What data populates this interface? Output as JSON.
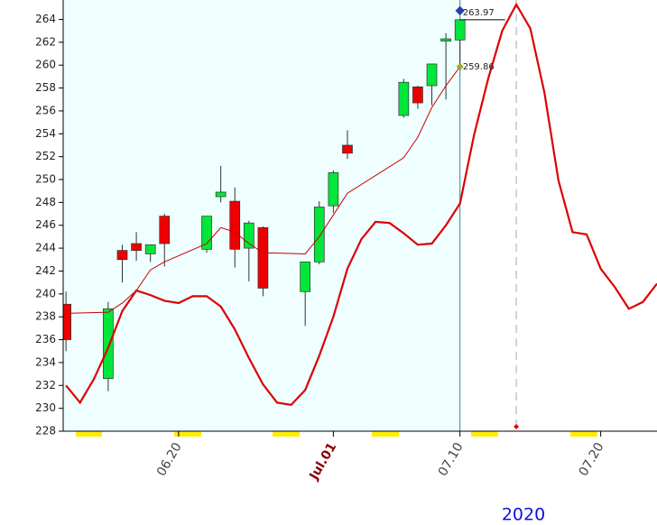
{
  "chart_data": {
    "type": "candlestick",
    "x": [
      12,
      15,
      16,
      17,
      18,
      19,
      22,
      23,
      24,
      25,
      26,
      29,
      30,
      31,
      32,
      36,
      37,
      38,
      39,
      40
    ],
    "open": [
      239.1,
      232.6,
      243.8,
      244.4,
      243.5,
      246.8,
      243.9,
      248.5,
      248.1,
      244.0,
      245.8,
      240.2,
      242.8,
      247.7,
      253.0,
      255.6,
      258.1,
      258.2,
      262.1,
      262.2
    ],
    "high": [
      240.2,
      239.3,
      244.3,
      245.4,
      244.3,
      247.0,
      246.8,
      251.2,
      249.3,
      246.4,
      245.9,
      242.8,
      248.1,
      250.8,
      254.3,
      258.8,
      258.2,
      260.1,
      262.8,
      263.97
    ],
    "low": [
      235.0,
      231.5,
      241.0,
      242.9,
      242.8,
      242.4,
      243.6,
      248.0,
      242.3,
      241.1,
      239.8,
      237.2,
      242.6,
      247.1,
      251.8,
      255.4,
      256.2,
      256.5,
      257.0,
      259.9
    ],
    "close": [
      236.0,
      238.7,
      243.0,
      243.8,
      244.3,
      244.4,
      246.8,
      248.9,
      243.9,
      246.2,
      240.5,
      242.8,
      247.6,
      250.6,
      252.3,
      258.5,
      256.7,
      260.1,
      262.3,
      263.97
    ],
    "up_color": "#00e639",
    "down_color": "#ee0000",
    "overlays": [
      {
        "x": [
          12,
          15,
          16,
          17,
          18,
          19,
          22,
          23,
          24,
          25,
          26,
          29,
          30,
          31,
          32,
          36,
          37,
          38,
          39,
          40
        ],
        "values": [
          238.3,
          238.4,
          239.2,
          240.3,
          242.1,
          242.8,
          244.4,
          245.8,
          245.4,
          244.4,
          243.6,
          243.5,
          245.0,
          246.9,
          248.8,
          251.9,
          253.7,
          256.3,
          258.2,
          259.86
        ],
        "color": "#cc0000",
        "width": 1
      },
      {
        "x": [
          12,
          13,
          14,
          15,
          16,
          17,
          18,
          19,
          20,
          21,
          22,
          23,
          24,
          25,
          26,
          27,
          28,
          29,
          30,
          31,
          32,
          33,
          34,
          35,
          36,
          37,
          38,
          39,
          40,
          41,
          42,
          43,
          44,
          45,
          46,
          47,
          48,
          49,
          50,
          51,
          52,
          53,
          54
        ],
        "values": [
          232.0,
          230.5,
          232.6,
          235.3,
          238.5,
          240.3,
          239.9,
          239.4,
          239.2,
          239.8,
          239.8,
          238.9,
          236.9,
          234.4,
          232.1,
          230.5,
          230.3,
          231.6,
          234.6,
          238.0,
          242.2,
          244.8,
          246.3,
          246.2,
          245.3,
          244.3,
          244.4,
          246.0,
          247.9,
          253.9,
          258.8,
          263.0,
          265.3,
          263.2,
          257.6,
          249.9,
          245.4,
          245.2,
          242.2,
          240.6,
          238.7,
          239.3,
          240.9
        ],
        "color": "#dd0000",
        "width": 2.2
      }
    ],
    "markers": [
      {
        "x": 40,
        "value": 263.97,
        "label": "263.97",
        "color": "#1f3fbf"
      },
      {
        "x": 40,
        "value": 259.86,
        "label": "259.86",
        "color": "#99bb00"
      }
    ],
    "current_date": 40,
    "projection_peak": 44,
    "xlim": [
      11.8,
      54
    ],
    "ylim": [
      228,
      265.3
    ],
    "xticks": [
      {
        "value": 20,
        "label": "06.20"
      },
      {
        "value": 31,
        "label": "Jul.01"
      },
      {
        "value": 40,
        "label": "07.10"
      },
      {
        "value": 50,
        "label": "07.20"
      }
    ],
    "xtick_colors": [
      "#444444",
      "#8b0000",
      "#444444",
      "#444444"
    ],
    "yticks": [
      228,
      230,
      232,
      234,
      236,
      238,
      240,
      242,
      244,
      246,
      248,
      250,
      252,
      254,
      256,
      258,
      260,
      262,
      264
    ],
    "year_label": "2020"
  }
}
